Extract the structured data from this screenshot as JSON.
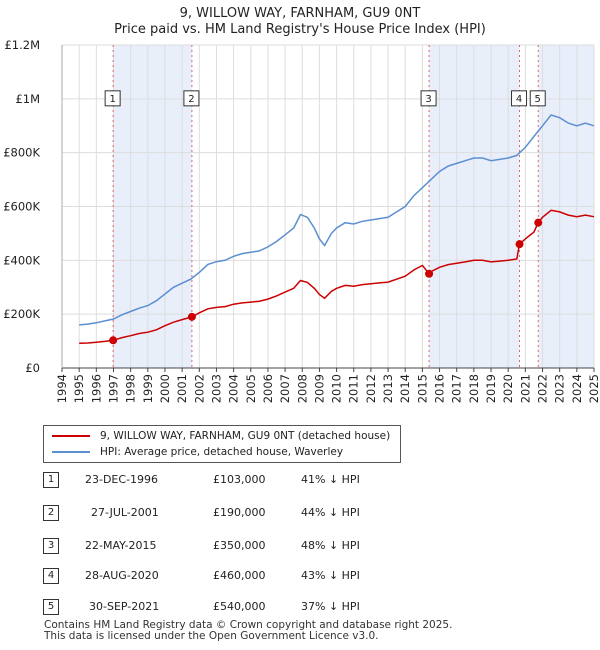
{
  "header": {
    "title": "9, WILLOW WAY, FARNHAM, GU9 0NT",
    "subtitle": "Price paid vs. HM Land Registry's House Price Index (HPI)"
  },
  "legend": {
    "items": [
      {
        "label": "9, WILLOW WAY, FARNHAM, GU9 0NT (detached house)",
        "color": "#cc0000"
      },
      {
        "label": "HPI: Average price, detached house, Waverley",
        "color": "#5b8fd0"
      }
    ]
  },
  "sales": [
    {
      "num": "1",
      "date": "23-DEC-1996",
      "price": "£103,000",
      "hpi": "41% ↓ HPI"
    },
    {
      "num": "2",
      "date": "27-JUL-2001",
      "price": "£190,000",
      "hpi": "44% ↓ HPI"
    },
    {
      "num": "3",
      "date": "22-MAY-2015",
      "price": "£350,000",
      "hpi": "48% ↓ HPI"
    },
    {
      "num": "4",
      "date": "28-AUG-2020",
      "price": "£460,000",
      "hpi": "43% ↓ HPI"
    },
    {
      "num": "5",
      "date": "30-SEP-2021",
      "price": "£540,000",
      "hpi": "37% ↓ HPI"
    }
  ],
  "footer": {
    "line1": "Contains HM Land Registry data © Crown copyright and database right 2025.",
    "line2": "This data is licensed under the Open Government Licence v3.0."
  },
  "chart_data": {
    "type": "line",
    "xlim": [
      1994,
      2025
    ],
    "ylim": [
      0,
      1200000
    ],
    "grid": true,
    "x_ticks": [
      "1994",
      "1995",
      "1996",
      "1997",
      "1998",
      "1999",
      "2000",
      "2001",
      "2002",
      "2003",
      "2004",
      "2005",
      "2006",
      "2007",
      "2008",
      "2009",
      "2010",
      "2011",
      "2012",
      "2013",
      "2014",
      "2015",
      "2016",
      "2017",
      "2018",
      "2019",
      "2020",
      "2021",
      "2022",
      "2023",
      "2024",
      "2025"
    ],
    "y_ticks": [
      {
        "value": 0,
        "label": "£0"
      },
      {
        "value": 200000,
        "label": "£200K"
      },
      {
        "value": 400000,
        "label": "£400K"
      },
      {
        "value": 600000,
        "label": "£600K"
      },
      {
        "value": 800000,
        "label": "£800K"
      },
      {
        "value": 1000000,
        "label": "£1M"
      },
      {
        "value": 1200000,
        "label": "£1.2M"
      }
    ],
    "sale_markers": [
      {
        "label": "1",
        "x": 1996.98,
        "y": 103000,
        "color": "#cc0000"
      },
      {
        "label": "2",
        "x": 2001.57,
        "y": 190000,
        "color": "#cc0000"
      },
      {
        "label": "3",
        "x": 2015.39,
        "y": 350000,
        "color": "#cc0000"
      },
      {
        "label": "4",
        "x": 2020.66,
        "y": 460000,
        "color": "#cc0000"
      },
      {
        "label": "5",
        "x": 2021.75,
        "y": 540000,
        "color": "#cc0000"
      }
    ],
    "series": [
      {
        "name": "HPI: Average price, detached house, Waverley",
        "color": "#5b8fd0",
        "points": [
          [
            1995.0,
            160000
          ],
          [
            1995.5,
            163000
          ],
          [
            1996.0,
            168000
          ],
          [
            1996.5,
            175000
          ],
          [
            1997.0,
            182000
          ],
          [
            1997.5,
            198000
          ],
          [
            1998.0,
            210000
          ],
          [
            1998.5,
            222000
          ],
          [
            1999.0,
            232000
          ],
          [
            1999.5,
            250000
          ],
          [
            2000.0,
            275000
          ],
          [
            2000.5,
            300000
          ],
          [
            2001.0,
            315000
          ],
          [
            2001.5,
            330000
          ],
          [
            2002.0,
            355000
          ],
          [
            2002.5,
            385000
          ],
          [
            2003.0,
            395000
          ],
          [
            2003.5,
            400000
          ],
          [
            2004.0,
            415000
          ],
          [
            2004.5,
            425000
          ],
          [
            2005.0,
            430000
          ],
          [
            2005.5,
            435000
          ],
          [
            2006.0,
            450000
          ],
          [
            2006.5,
            470000
          ],
          [
            2007.0,
            495000
          ],
          [
            2007.5,
            520000
          ],
          [
            2007.9,
            570000
          ],
          [
            2008.3,
            560000
          ],
          [
            2008.7,
            520000
          ],
          [
            2009.0,
            480000
          ],
          [
            2009.3,
            455000
          ],
          [
            2009.7,
            500000
          ],
          [
            2010.0,
            520000
          ],
          [
            2010.5,
            540000
          ],
          [
            2011.0,
            535000
          ],
          [
            2011.5,
            545000
          ],
          [
            2012.0,
            550000
          ],
          [
            2012.5,
            555000
          ],
          [
            2013.0,
            560000
          ],
          [
            2013.5,
            580000
          ],
          [
            2014.0,
            600000
          ],
          [
            2014.5,
            640000
          ],
          [
            2015.0,
            670000
          ],
          [
            2015.5,
            700000
          ],
          [
            2016.0,
            730000
          ],
          [
            2016.5,
            750000
          ],
          [
            2017.0,
            760000
          ],
          [
            2017.5,
            770000
          ],
          [
            2018.0,
            780000
          ],
          [
            2018.5,
            780000
          ],
          [
            2019.0,
            770000
          ],
          [
            2019.5,
            775000
          ],
          [
            2020.0,
            780000
          ],
          [
            2020.5,
            790000
          ],
          [
            2021.0,
            820000
          ],
          [
            2021.5,
            860000
          ],
          [
            2022.0,
            900000
          ],
          [
            2022.5,
            940000
          ],
          [
            2023.0,
            930000
          ],
          [
            2023.5,
            910000
          ],
          [
            2024.0,
            900000
          ],
          [
            2024.5,
            910000
          ],
          [
            2025.0,
            900000
          ]
        ]
      },
      {
        "name": "9, WILLOW WAY, FARNHAM, GU9 0NT (detached house)",
        "color": "#cc0000",
        "points": [
          [
            1995.0,
            92000
          ],
          [
            1995.5,
            93000
          ],
          [
            1996.0,
            96000
          ],
          [
            1996.5,
            99000
          ],
          [
            1996.98,
            103000
          ],
          [
            1997.5,
            113000
          ],
          [
            1998.0,
            120000
          ],
          [
            1998.5,
            128000
          ],
          [
            1999.0,
            133000
          ],
          [
            1999.5,
            142000
          ],
          [
            2000.0,
            157000
          ],
          [
            2000.5,
            170000
          ],
          [
            2001.0,
            180000
          ],
          [
            2001.57,
            190000
          ],
          [
            2002.0,
            205000
          ],
          [
            2002.5,
            220000
          ],
          [
            2003.0,
            225000
          ],
          [
            2003.5,
            228000
          ],
          [
            2004.0,
            237000
          ],
          [
            2004.5,
            242000
          ],
          [
            2005.0,
            245000
          ],
          [
            2005.5,
            248000
          ],
          [
            2006.0,
            256000
          ],
          [
            2006.5,
            268000
          ],
          [
            2007.0,
            282000
          ],
          [
            2007.5,
            296000
          ],
          [
            2007.9,
            325000
          ],
          [
            2008.3,
            318000
          ],
          [
            2008.7,
            296000
          ],
          [
            2009.0,
            273000
          ],
          [
            2009.3,
            259000
          ],
          [
            2009.7,
            285000
          ],
          [
            2010.0,
            296000
          ],
          [
            2010.5,
            307000
          ],
          [
            2011.0,
            304000
          ],
          [
            2011.5,
            310000
          ],
          [
            2012.0,
            313000
          ],
          [
            2012.5,
            316000
          ],
          [
            2013.0,
            319000
          ],
          [
            2013.5,
            330000
          ],
          [
            2014.0,
            341000
          ],
          [
            2014.5,
            364000
          ],
          [
            2015.0,
            381000
          ],
          [
            2015.39,
            350000
          ],
          [
            2015.5,
            358000
          ],
          [
            2016.0,
            374000
          ],
          [
            2016.5,
            384000
          ],
          [
            2017.0,
            389000
          ],
          [
            2017.5,
            394000
          ],
          [
            2018.0,
            400000
          ],
          [
            2018.5,
            400000
          ],
          [
            2019.0,
            394000
          ],
          [
            2019.5,
            397000
          ],
          [
            2020.0,
            400000
          ],
          [
            2020.5,
            405000
          ],
          [
            2020.66,
            460000
          ],
          [
            2021.0,
            480000
          ],
          [
            2021.5,
            505000
          ],
          [
            2021.75,
            540000
          ],
          [
            2022.0,
            560000
          ],
          [
            2022.5,
            586000
          ],
          [
            2023.0,
            580000
          ],
          [
            2023.5,
            568000
          ],
          [
            2024.0,
            562000
          ],
          [
            2024.5,
            568000
          ],
          [
            2025.0,
            562000
          ]
        ]
      }
    ]
  }
}
